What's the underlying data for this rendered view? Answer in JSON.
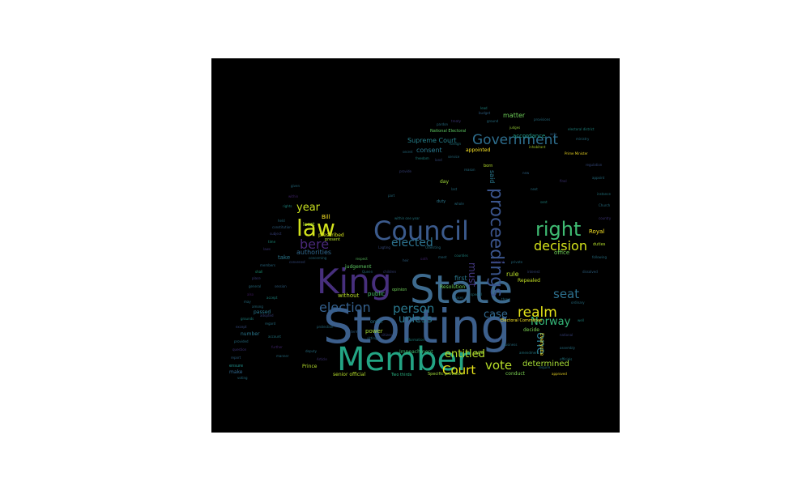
{
  "colors": {
    "background": "#000000",
    "page": "#ffffff"
  },
  "words": {
    "storting": "Storting",
    "state": "State",
    "member": "Member",
    "king": "King",
    "council": "Council",
    "law": "law",
    "right": "right",
    "proceedings": "proceedings",
    "government": "Government",
    "decision": "decision",
    "election": "election",
    "person": "person",
    "realm": "realm",
    "seat": "seat",
    "court": "Court",
    "vote": "vote",
    "elected": "elected",
    "bere": "bere",
    "year": "year",
    "unless": "unless",
    "norway": "Norway",
    "entitled": "entitled",
    "one": "one",
    "case": "case",
    "must": "must",
    "determined": "determined",
    "supreme_court": "Supreme Court",
    "consent": "consent",
    "appointed": "appointed",
    "matter": "matter",
    "accordance": "accordance",
    "national_electoral": "National Electoral",
    "royal": "Royal",
    "office": "office",
    "authorities": "authorities",
    "bill": "Bill",
    "least": "least",
    "prescribed": "prescribed",
    "take": "take",
    "without": "without",
    "judgement": "judgement",
    "public": "public",
    "rule": "rule",
    "first": "first",
    "repealed": "Repealed",
    "resolution": "Resolution",
    "opinion": "opinion",
    "power": "power",
    "impeachment": "Impeachment",
    "prince": "Prince",
    "senior_official": "senior official",
    "electoral_committee": "Electoral Committee",
    "decide": "decide",
    "everyone": "Everyone",
    "conduct": "conduct",
    "age": "age",
    "specific_provision": "Specific provision",
    "two_thirds": "Two thirds",
    "order": "order",
    "passed": "passed",
    "number": "number",
    "make": "make",
    "ensure": "ensure",
    "day": "day",
    "said": "said",
    "born": "born",
    "duty": "duty",
    "duties": "duties",
    "given": "given",
    "within": "within",
    "present": "present",
    "rights": "rights",
    "held": "held",
    "constitution": "constitution",
    "subject": "subject",
    "time": "time",
    "laws": "laws",
    "members": "members",
    "prime_minister": "Prime Minister",
    "inhabitant": "inhabitant",
    "judges": "judges",
    "provisions": "provisions",
    "acts": "acts",
    "shall": "shall",
    "place": "place",
    "general": "general",
    "also": "also",
    "may": "may",
    "grounds": "grounds",
    "except": "except",
    "provided": "provided",
    "question": "question",
    "report": "report",
    "voting": "voting",
    "adopted": "adopted",
    "regard": "regard",
    "account": "account",
    "further": "further",
    "manner": "manner",
    "session": "session",
    "accept": "accept",
    "among": "among",
    "convened": "convened",
    "concerning": "concerning",
    "respect": "respect",
    "queen": "Queen",
    "children": "children",
    "heir": "heir",
    "oath": "oath",
    "meet": "meet",
    "counties": "counties",
    "criminal": "criminal",
    "private": "private",
    "interest": "interest",
    "cases": "cases",
    "special": "special",
    "three": "three",
    "term": "term",
    "sitting": "sitting",
    "citizen": "citizen",
    "information": "information",
    "protection": "protection",
    "article": "Article",
    "deputy": "deputy",
    "majority": "majority",
    "business": "business",
    "amendment": "amendment",
    "ministry": "ministry",
    "electoral_district": "electoral district",
    "regulation": "regulation",
    "appoint": "appoint",
    "instance": "instance",
    "church": "Church",
    "country": "country",
    "following": "following",
    "dissolved": "dissolved",
    "ordinary": "ordinary",
    "well": "well",
    "national": "national",
    "assembly": "assembly",
    "officials": "officials",
    "require": "require",
    "approved": "approved",
    "secret": "secret",
    "freedom": "freedom",
    "land": "land",
    "service": "service",
    "foreign": "foreign",
    "pardon": "pardon",
    "treaty": "treaty",
    "budget": "budget",
    "ground": "ground",
    "lead": "lead",
    "reason": "reason",
    "provide": "provide",
    "part": "part",
    "within_year": "within one year",
    "last": "last",
    "new": "new",
    "next": "next",
    "sent": "sent",
    "final": "final",
    "whole": "whole",
    "lagting": "Lagting",
    "odelsting": "Odelsting"
  }
}
